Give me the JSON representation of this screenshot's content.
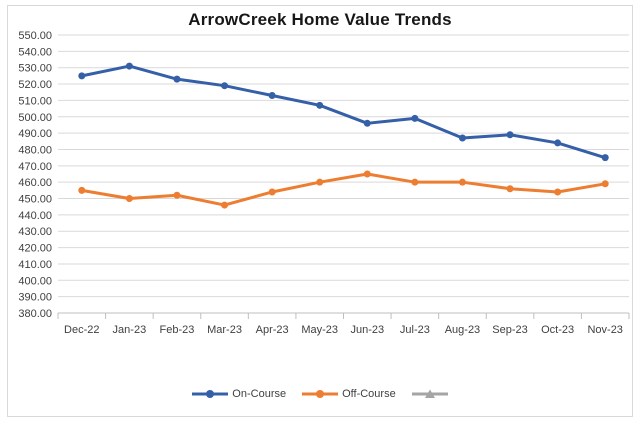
{
  "chart_data": {
    "type": "line",
    "title": "ArrowCreek Home Value Trends",
    "categories": [
      "Dec-22",
      "Jan-23",
      "Feb-23",
      "Mar-23",
      "Apr-23",
      "May-23",
      "Jun-23",
      "Jul-23",
      "Aug-23",
      "Sep-23",
      "Oct-23",
      "Nov-23"
    ],
    "series": [
      {
        "name": "On-Course",
        "color": "#3560A8",
        "marker": "circle",
        "values": [
          525,
          531,
          523,
          519,
          513,
          507,
          496,
          499,
          487,
          489,
          484,
          475
        ]
      },
      {
        "name": "Off-Course",
        "color": "#ED7D31",
        "marker": "circle",
        "values": [
          455,
          450,
          452,
          446,
          454,
          460,
          465,
          460,
          460,
          456,
          454,
          459
        ]
      },
      {
        "name": "",
        "color": "#A5A5A5",
        "marker": "triangle",
        "values": []
      }
    ],
    "ylim": [
      380,
      550
    ],
    "y_tick_step": 10,
    "y_ticks": [
      "550.00",
      "540.00",
      "530.00",
      "520.00",
      "510.00",
      "500.00",
      "490.00",
      "480.00",
      "470.00",
      "460.00",
      "450.00",
      "440.00",
      "430.00",
      "420.00",
      "410.00",
      "400.00",
      "390.00",
      "380.00"
    ],
    "xlabel": "",
    "ylabel": "",
    "grid": "horizontal",
    "legend_position": "bottom"
  },
  "colors": {
    "chart_border": "#D9D9D9",
    "gridline": "#D9D9D9",
    "axis_line": "#BFBFBF",
    "axis_text": "#404040",
    "title_text": "#171717"
  }
}
